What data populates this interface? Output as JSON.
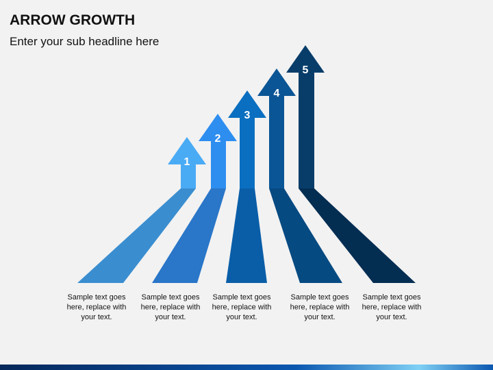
{
  "header": {
    "title": "ARROW GROWTH",
    "subtitle": "Enter your sub headline here"
  },
  "arrows": [
    {
      "label": "1",
      "text": [
        "Sample text goes",
        "here, replace with",
        "your text."
      ]
    },
    {
      "label": "2",
      "text": [
        "Sample text goes",
        "here, replace with",
        "your text."
      ]
    },
    {
      "label": "3",
      "text": [
        "Sample text goes",
        "here, replace with",
        "your text."
      ]
    },
    {
      "label": "4",
      "text": [
        "Sample text goes",
        "here, replace with",
        "your text."
      ]
    },
    {
      "label": "5",
      "text": [
        "Sample text goes",
        "here, replace with",
        "your text."
      ]
    }
  ]
}
